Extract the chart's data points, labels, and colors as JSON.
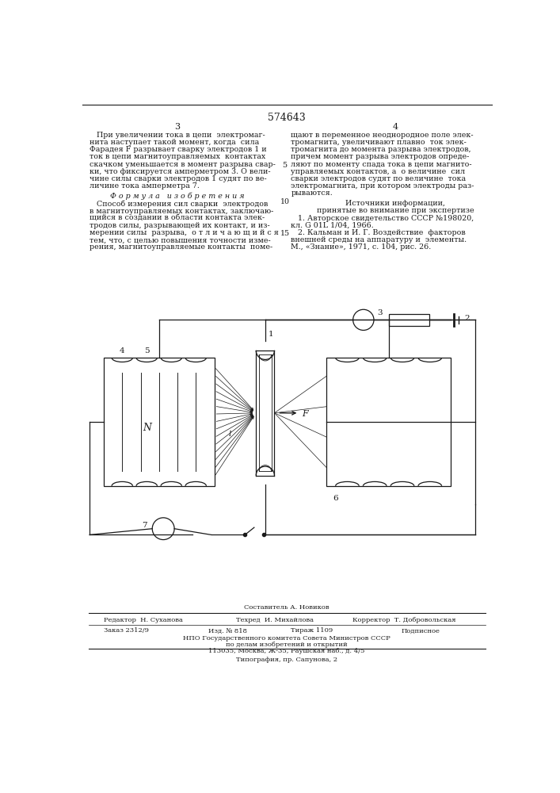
{
  "bg_color": "#ffffff",
  "page_width": 7.07,
  "page_height": 10.0,
  "title_text": "574643",
  "col_left": "3",
  "col_right": "4",
  "left_col_text": [
    "   При увеличении тока в цепи  электромаг-",
    "нита наступает такой момент, когда  сила",
    "Фарадея F разрывает сварку электродов 1 и",
    "ток в цепи магнитоуправляемых  контактах",
    "скачком уменьшается в момент разрыва свар-",
    "ки, что фиксируется амперметром 3. О вели-",
    "чине силы сварки электродов 1 судят по ве-",
    "личине тока амперметра 7."
  ],
  "formula_header": "Ф о р м у л а   и з о б р е т е н и я",
  "formula_text": [
    "   Способ измерения сил сварки  электродов",
    "в магнитоуправляемых контактах, заключаю-",
    "щийся в создании в области контакта элек-",
    "тродов силы, разрывающей их контакт, и из-",
    "мерении силы  разрыва,  о т л и ч а ю щ и й с я",
    "тем, что, с целью повышения точности изме-",
    "рения, магнитоуправляемые контакты  поме-"
  ],
  "right_col_text": [
    "щают в переменное неоднородное поле элек-",
    "тромагнита, увеличивают плавно  ток элек-",
    "тромагнита до момента разрыва электродов,",
    "причем момент разрыва электродов опреде-",
    "ляют по моменту спада тока в цепи магнито-",
    "управляемых контактов, а  о величине  сил",
    "сварки электродов судят по величине  тока",
    "электромагнита, при котором электроды раз-",
    "рываются."
  ],
  "sources_header": "Источники информации,",
  "sources_subheader": "принятые во внимание при экспертизе",
  "source1": "   1. Авторское свидетельство СССР №198020,",
  "source1b": "кл. G 01L 1/04, 1966.",
  "source2": "   2. Кальман и И. Г. Воздействие  факторов",
  "source2b": "внешней среды на аппаратуру и  элементы.",
  "source2c": "М., «Знание», 1971, с. 104, рис. 26.",
  "line_num_5": "5",
  "line_num_10": "10",
  "line_num_15": "15",
  "footer_composer": "Составитель А. Новиков",
  "footer_editor": "Редактор  Н. Суханова",
  "footer_tech": "Техред  И. Михайлова",
  "footer_corrector": "Корректор  Т. Добровольская",
  "footer_order": "Заказ 2312/9",
  "footer_izd": "Изд. № 818",
  "footer_tirazh": "Тираж 1109",
  "footer_podp": "Подписное",
  "footer_npo": "НПО Государственного комитета Совета Министров СССР",
  "footer_dela": "по делам изобретений и открытий",
  "footer_addr": "113035, Москва, Ж-35, Раушская наб., д. 4/5",
  "footer_tip": "Типография, пр. Сапунова, 2",
  "diagram_color": "#1a1a1a"
}
